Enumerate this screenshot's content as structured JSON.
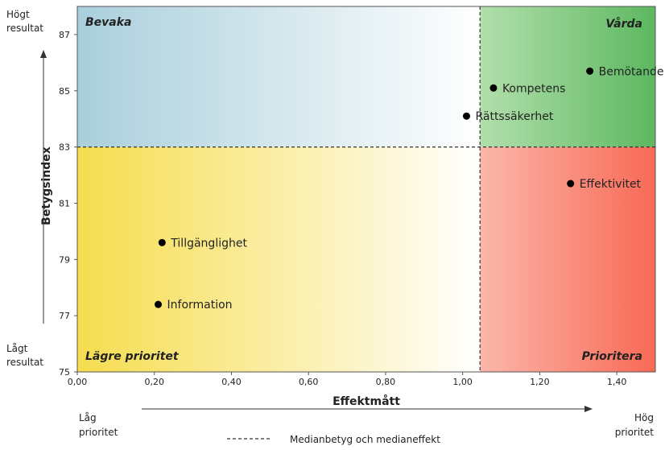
{
  "chart_data": {
    "type": "scatter",
    "xlabel": "Effektmått",
    "ylabel": "Betygsindex",
    "xlim": [
      0,
      1.5
    ],
    "ylim": [
      75,
      88
    ],
    "x_ticks": [
      "0,00",
      "0,20",
      "0,40",
      "0,60",
      "0,80",
      "1,00",
      "1,20",
      "1,40"
    ],
    "y_ticks": [
      "75",
      "77",
      "79",
      "81",
      "83",
      "85",
      "87"
    ],
    "median_x": 1.045,
    "median_y": 83,
    "points": [
      {
        "label": "Bemötande",
        "x": 1.33,
        "y": 85.7
      },
      {
        "label": "Kompetens",
        "x": 1.08,
        "y": 85.1
      },
      {
        "label": "Rättssäkerhet",
        "x": 1.01,
        "y": 84.1
      },
      {
        "label": "Effektivitet",
        "x": 1.28,
        "y": 81.7
      },
      {
        "label": "Tillgänglighet",
        "x": 0.22,
        "y": 79.6
      },
      {
        "label": "Information",
        "x": 0.21,
        "y": 77.4
      }
    ],
    "quadrants": {
      "top_left": "Bevaka",
      "top_right": "Vårda",
      "bottom_left": "Lägre prioritet",
      "bottom_right": "Prioritera"
    },
    "y_high_label": [
      "Högt",
      "resultat"
    ],
    "y_low_label": [
      "Lågt",
      "resultat"
    ],
    "x_low_label": [
      "Låg",
      "prioritet"
    ],
    "x_high_label": [
      "Hög",
      "prioritet"
    ],
    "legend_label": "Medianbetyg och medianeffekt",
    "colors": {
      "bevaka": "#a9cfdc",
      "varda": "#5db860",
      "lagre": "#f6dd4e",
      "prioritera": "#f86a55",
      "point": "#000000"
    }
  }
}
